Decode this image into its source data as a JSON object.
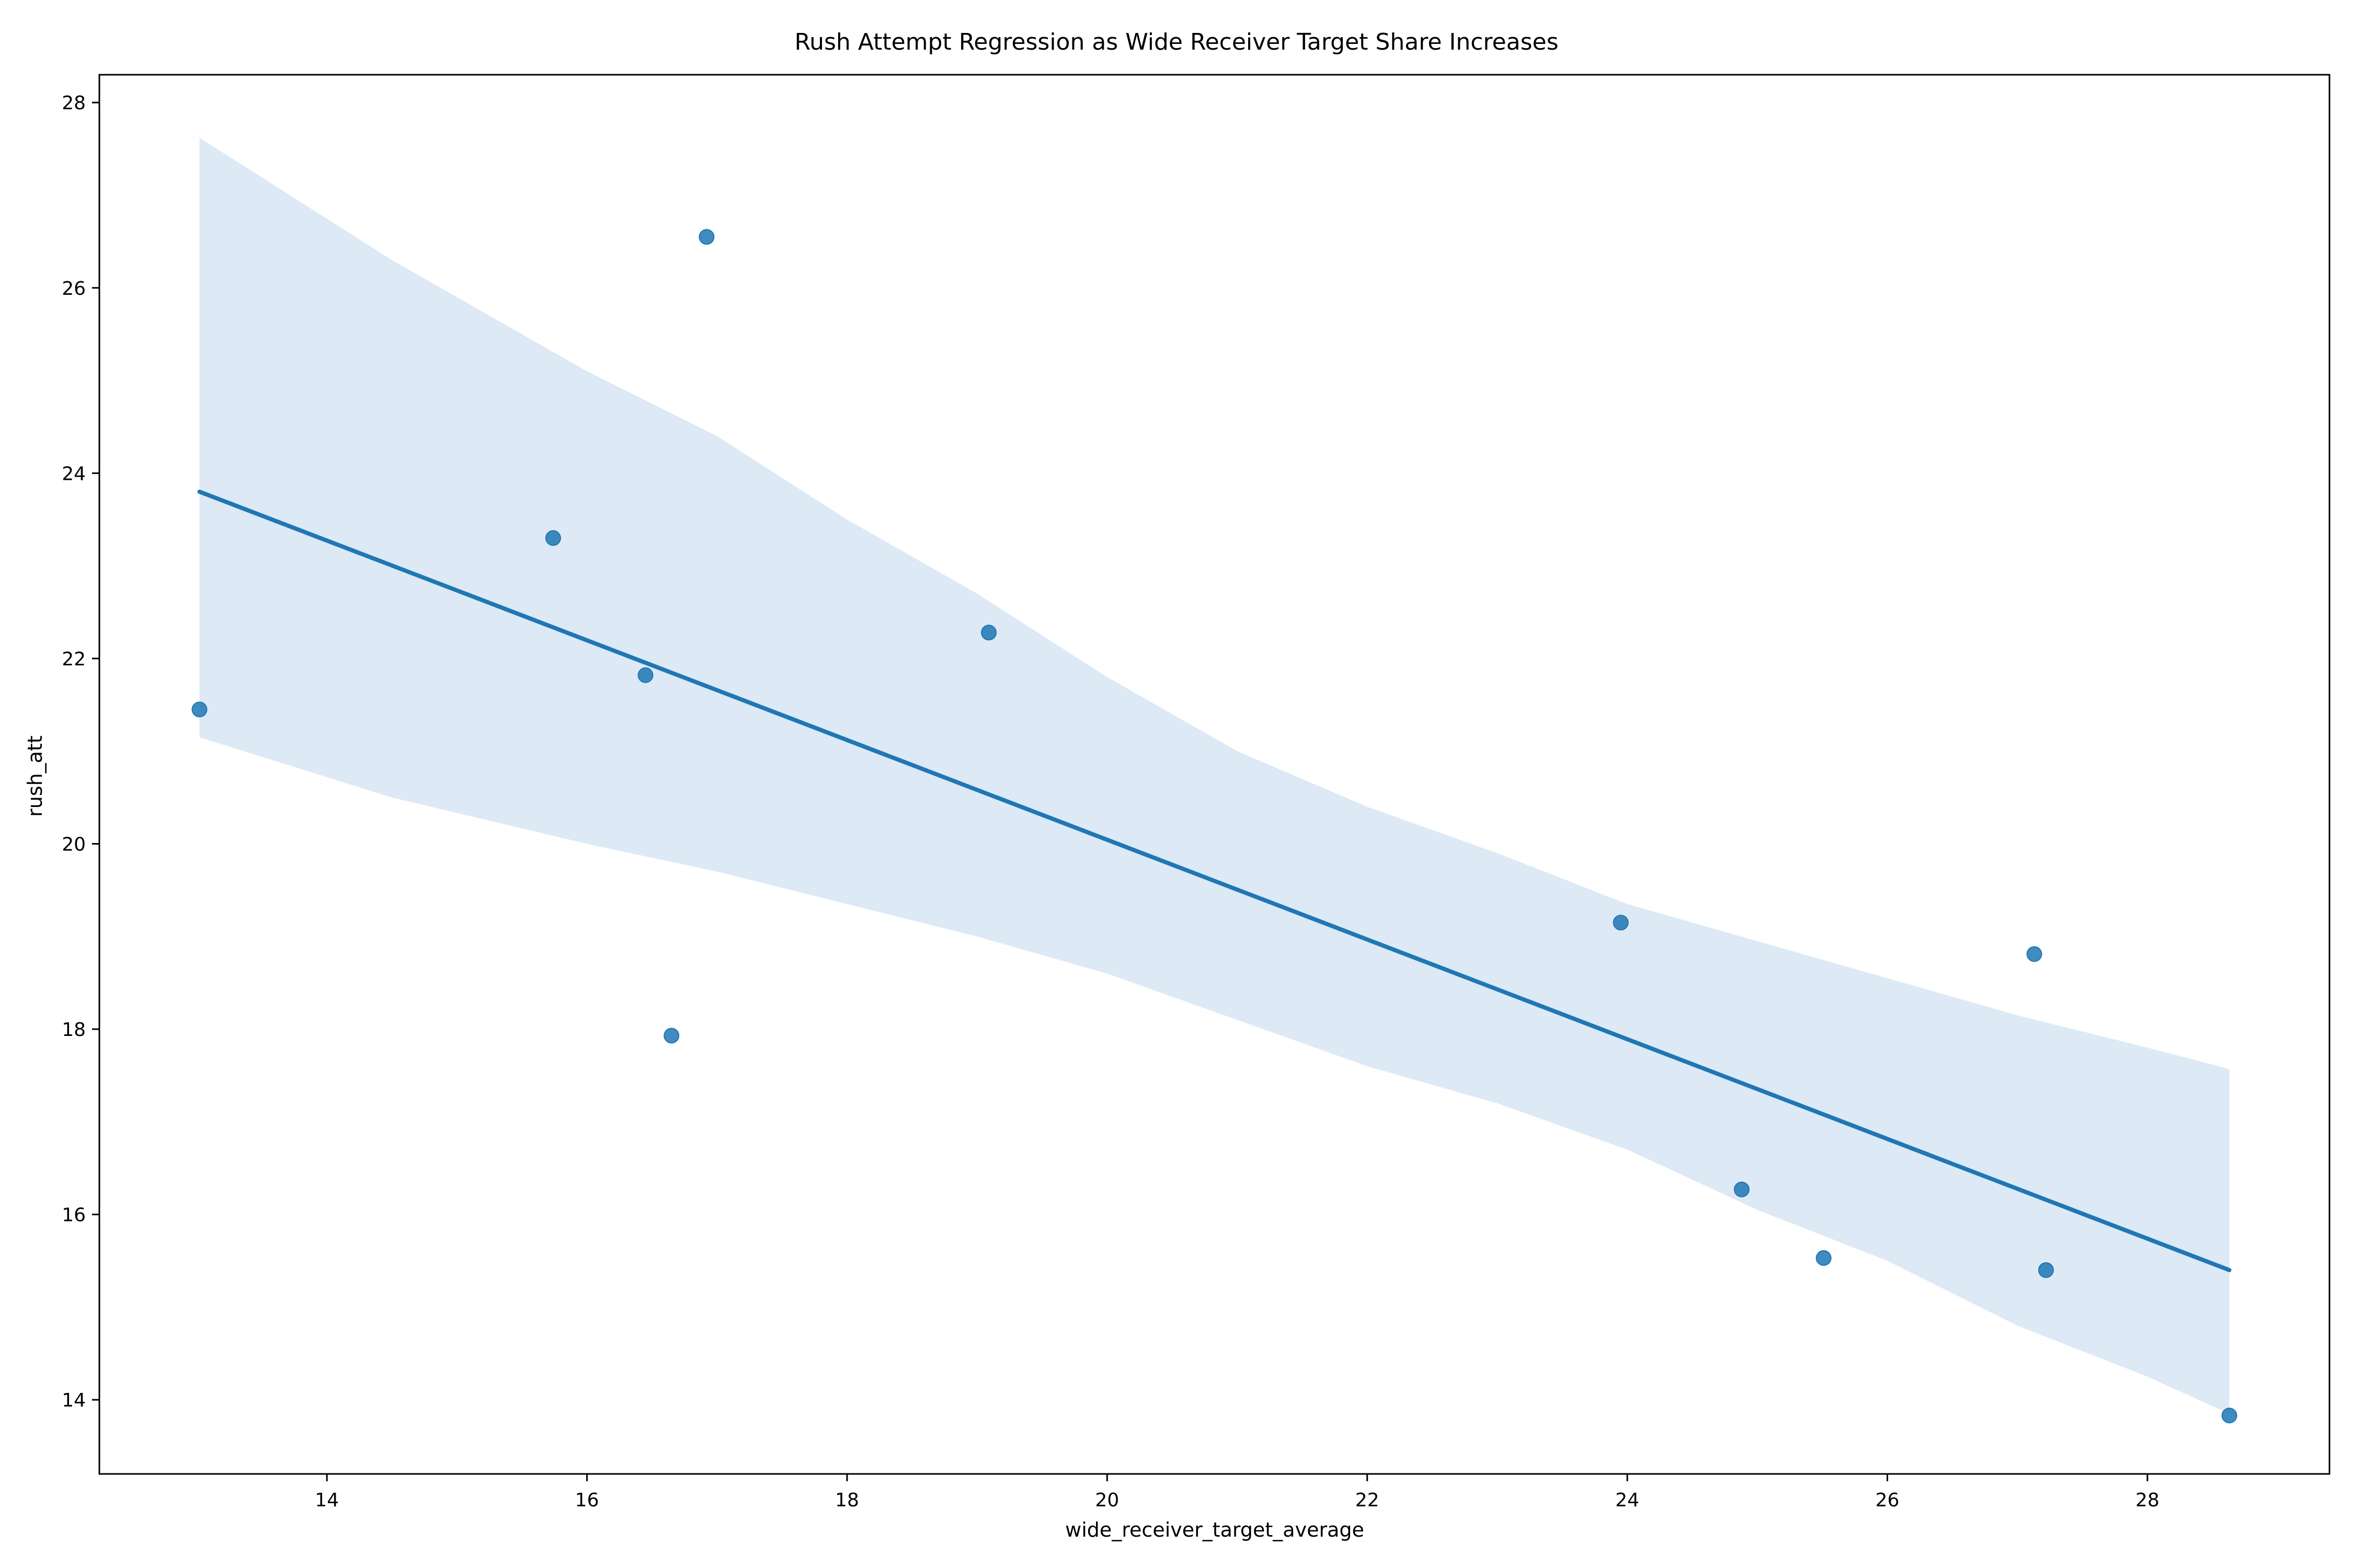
{
  "chart_data": {
    "type": "scatter",
    "title": "Rush Attempt Regression as Wide Receiver Target Share Increases",
    "xlabel": "wide_receiver_target_average",
    "ylabel": "rush_att",
    "xlim": [
      12.25,
      29.4
    ],
    "ylim": [
      13.2,
      28.3
    ],
    "xticks": [
      14,
      16,
      18,
      20,
      22,
      24,
      26,
      28
    ],
    "yticks": [
      14,
      16,
      18,
      20,
      22,
      24,
      26,
      28
    ],
    "grid": false,
    "legend": "none",
    "colors": {
      "points": "#1f77b4",
      "line": "#1f77b4",
      "band": "#c6dbef"
    },
    "series": [
      {
        "kind": "points",
        "x": [
          13.02,
          15.74,
          16.45,
          16.65,
          16.92,
          19.09,
          23.95,
          24.88,
          25.51,
          27.13,
          27.22,
          28.63
        ],
        "y": [
          21.45,
          23.3,
          21.82,
          17.93,
          26.55,
          22.28,
          19.15,
          16.27,
          15.53,
          18.81,
          15.4,
          13.83
        ]
      },
      {
        "kind": "regression_line",
        "x": [
          13.02,
          28.63
        ],
        "y": [
          23.8,
          15.4
        ]
      },
      {
        "kind": "confidence_band",
        "x": [
          13.02,
          14.5,
          16.0,
          17.0,
          18.0,
          19.0,
          20.0,
          21.0,
          22.0,
          23.0,
          24.0,
          25.0,
          26.0,
          27.0,
          28.0,
          28.63
        ],
        "upper": [
          27.62,
          26.3,
          25.1,
          24.4,
          23.5,
          22.7,
          21.8,
          21.0,
          20.4,
          19.9,
          19.35,
          18.95,
          18.55,
          18.15,
          17.8,
          17.57
        ],
        "lower": [
          21.15,
          20.5,
          20.0,
          19.7,
          19.35,
          19.0,
          18.6,
          18.1,
          17.6,
          17.2,
          16.7,
          16.05,
          15.5,
          14.8,
          14.25,
          13.85
        ]
      }
    ]
  }
}
